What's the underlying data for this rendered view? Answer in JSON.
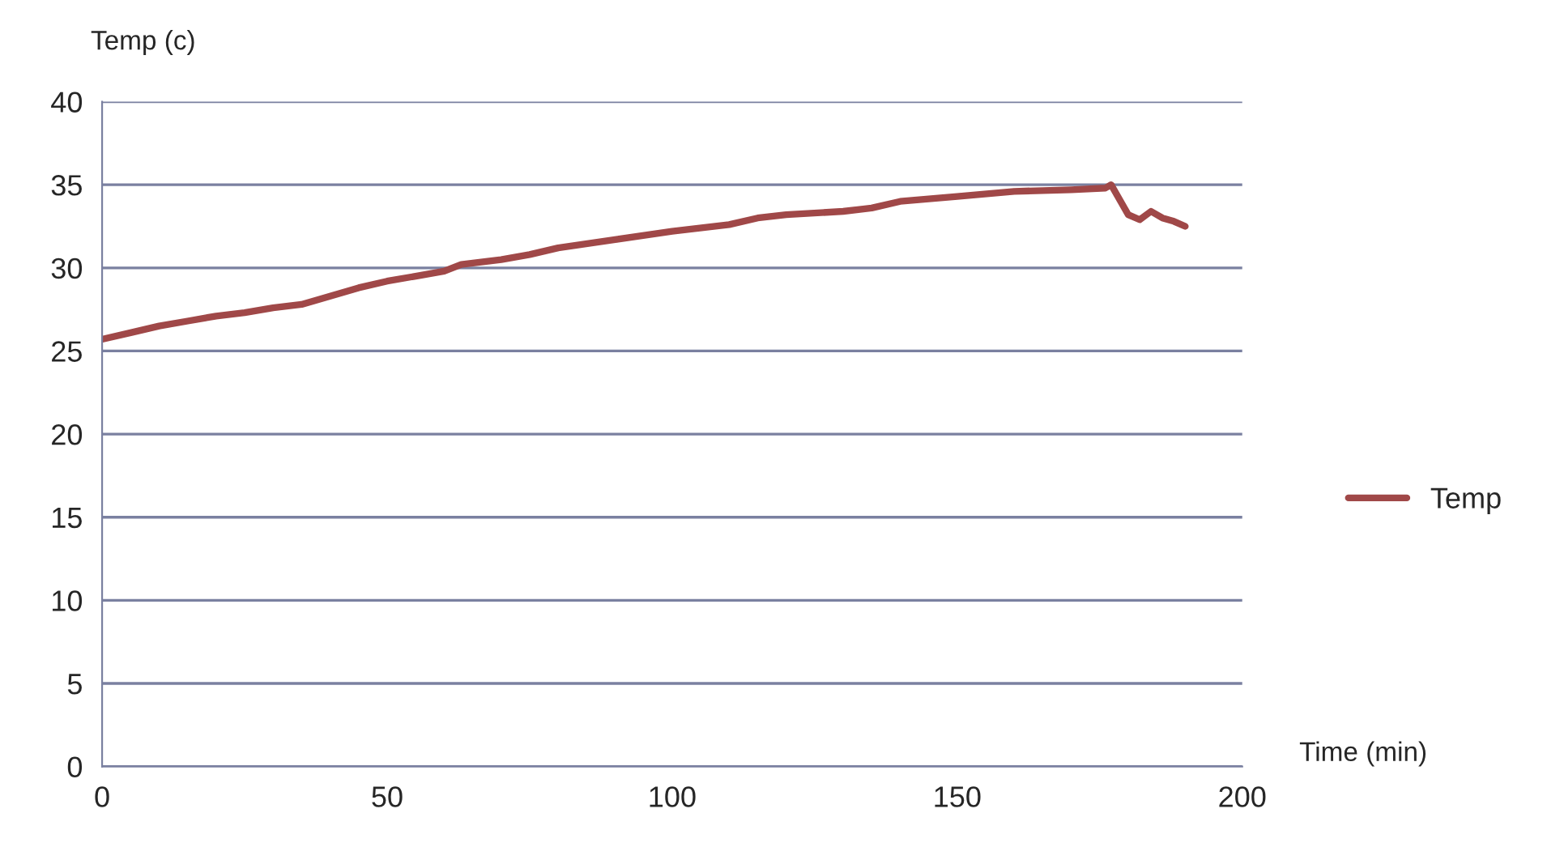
{
  "chart_data": {
    "type": "line",
    "xlabel": "Time (min)",
    "ylabel": "Temp (c)",
    "xlim": [
      0,
      200
    ],
    "xticks": [
      0,
      50,
      100,
      150,
      200
    ],
    "ylim": [
      0,
      40
    ],
    "yticks": [
      0,
      5,
      10,
      15,
      20,
      25,
      30,
      35,
      40
    ],
    "grid": "y",
    "legend": "right",
    "marker": "none",
    "line_style": "solid",
    "series": [
      {
        "name": "Temp",
        "color": "#a04848",
        "x": [
          0,
          5,
          10,
          15,
          20,
          25,
          30,
          35,
          40,
          45,
          50,
          55,
          60,
          63,
          70,
          75,
          80,
          90,
          100,
          110,
          115,
          120,
          130,
          135,
          140,
          150,
          160,
          170,
          176,
          177,
          180,
          182,
          184,
          186,
          188,
          190
        ],
        "values": [
          25.7,
          26.1,
          26.5,
          26.8,
          27.1,
          27.3,
          27.6,
          27.8,
          28.3,
          28.8,
          29.2,
          29.5,
          29.8,
          30.2,
          30.5,
          30.8,
          31.2,
          31.7,
          32.2,
          32.6,
          33.0,
          33.2,
          33.4,
          33.6,
          34.0,
          34.3,
          34.6,
          34.7,
          34.8,
          35.0,
          33.2,
          32.9,
          33.4,
          33.0,
          32.8,
          32.5
        ]
      }
    ]
  }
}
